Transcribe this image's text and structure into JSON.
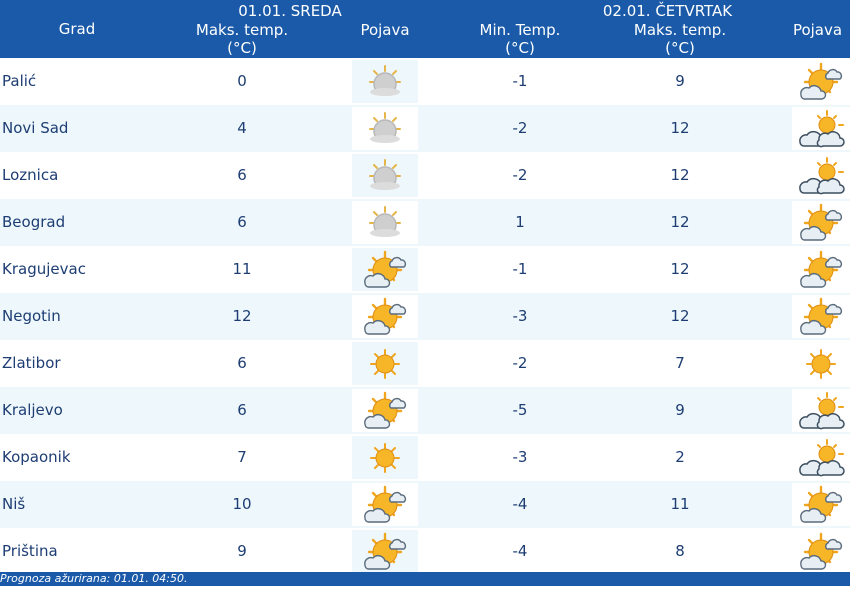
{
  "header": {
    "city_col": "Grad",
    "day1": {
      "title": "01.01. SREDA",
      "max_temp": "Maks. temp.",
      "unit": "(°C)",
      "phenomenon": "Pojava"
    },
    "day2": {
      "title": "02.01. ČETVRTAK",
      "min_temp": "Min. Temp.",
      "min_unit": "(°C)",
      "max_temp": "Maks. temp.",
      "max_unit": "(°C)",
      "phenomenon": "Pojava"
    }
  },
  "rows": [
    {
      "city": "Palić",
      "max1": "0",
      "icon1": "overcast-sun-icon",
      "min2": "-1",
      "max2": "9",
      "icon2": "sunny-cloud-icon"
    },
    {
      "city": "Novi Sad",
      "max1": "4",
      "icon1": "overcast-sun-icon",
      "min2": "-2",
      "max2": "12",
      "icon2": "partly-cloudy-icon"
    },
    {
      "city": "Loznica",
      "max1": "6",
      "icon1": "overcast-sun-icon",
      "min2": "-2",
      "max2": "12",
      "icon2": "partly-cloudy-icon"
    },
    {
      "city": "Beograd",
      "max1": "6",
      "icon1": "overcast-sun-icon",
      "min2": "1",
      "max2": "12",
      "icon2": "sunny-cloud-icon"
    },
    {
      "city": "Kragujevac",
      "max1": "11",
      "icon1": "sunny-cloud-icon",
      "min2": "-1",
      "max2": "12",
      "icon2": "sunny-cloud-icon"
    },
    {
      "city": "Negotin",
      "max1": "12",
      "icon1": "sunny-cloud-icon",
      "min2": "-3",
      "max2": "12",
      "icon2": "sunny-cloud-icon"
    },
    {
      "city": "Zlatibor",
      "max1": "6",
      "icon1": "sun-icon",
      "min2": "-2",
      "max2": "7",
      "icon2": "sun-icon"
    },
    {
      "city": "Kraljevo",
      "max1": "6",
      "icon1": "sunny-cloud-icon",
      "min2": "-5",
      "max2": "9",
      "icon2": "partly-cloudy-icon"
    },
    {
      "city": "Kopaonik",
      "max1": "7",
      "icon1": "sun-icon",
      "min2": "-3",
      "max2": "2",
      "icon2": "partly-cloudy-icon"
    },
    {
      "city": "Niš",
      "max1": "10",
      "icon1": "sunny-cloud-icon",
      "min2": "-4",
      "max2": "11",
      "icon2": "sunny-cloud-icon"
    },
    {
      "city": "Priština",
      "max1": "9",
      "icon1": "sunny-cloud-icon",
      "min2": "-4",
      "max2": "8",
      "icon2": "sunny-cloud-icon"
    }
  ],
  "footer": {
    "updated": "Prognoza ažurirana:  01.01. 04:50."
  },
  "colors": {
    "header_bg": "#1a5aa8",
    "text": "#1d3d73",
    "stripe": "#eef8fc"
  }
}
